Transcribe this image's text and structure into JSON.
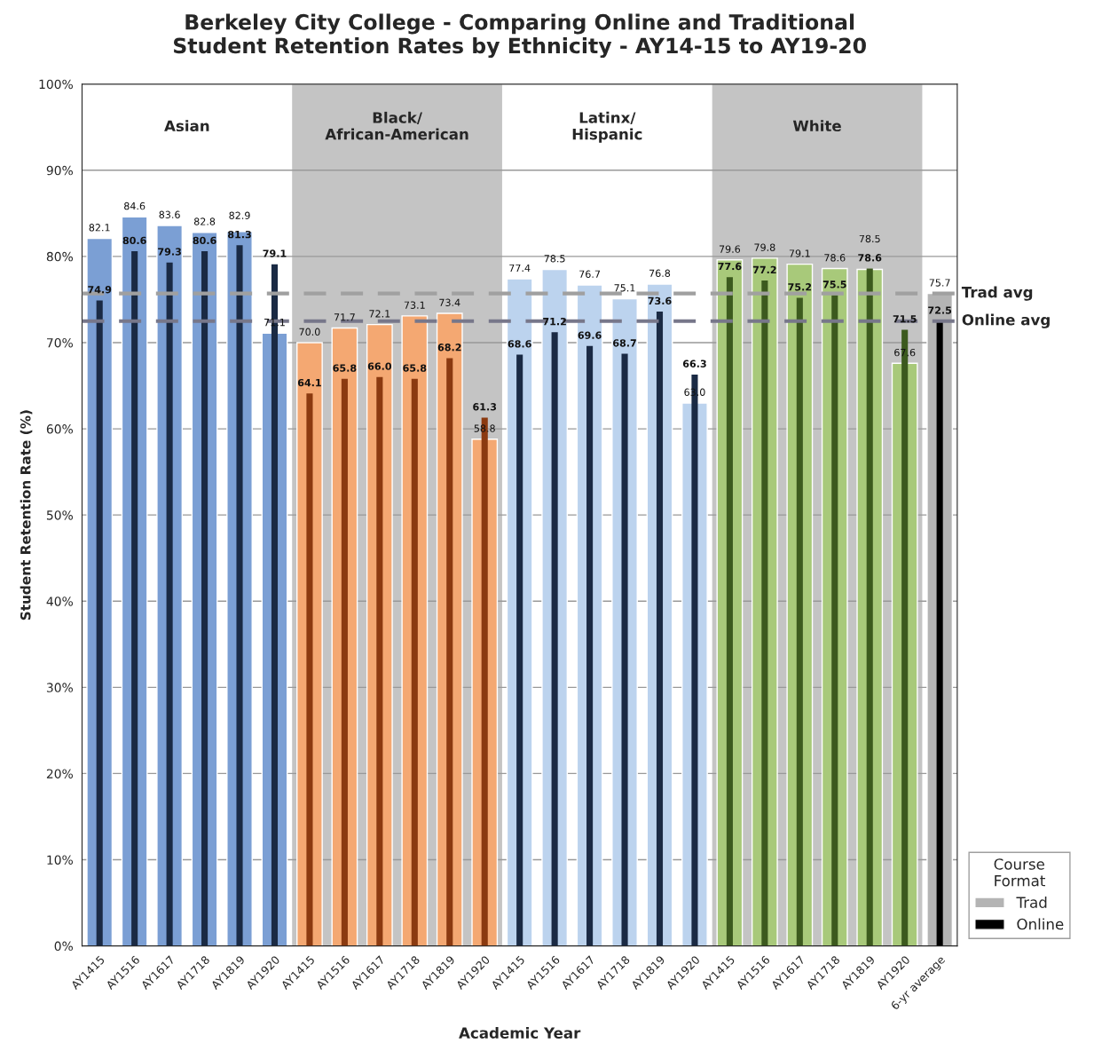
{
  "chart_data": {
    "type": "bar",
    "title": "Berkeley City College - Comparing Online and Traditional\nStudent Retention Rates by Ethnicity - AY14-15 to AY19-20",
    "xlabel": "Academic Year",
    "ylabel": "Student Retention Rate (%)",
    "legend_title": "Course\nFormat",
    "categories": [
      "AY1415",
      "AY1516",
      "AY1617",
      "AY1718",
      "AY1819",
      "AY1920",
      "AY1415",
      "AY1516",
      "AY1617",
      "AY1718",
      "AY1819",
      "AY1920",
      "AY1415",
      "AY1516",
      "AY1617",
      "AY1718",
      "AY1819",
      "AY1920",
      "AY1415",
      "AY1516",
      "AY1617",
      "AY1718",
      "AY1819",
      "AY1920",
      "6-yr average"
    ],
    "series": [
      {
        "name": "Trad",
        "colors": [
          "#7b9fd4",
          "#7b9fd4",
          "#7b9fd4",
          "#7b9fd4",
          "#7b9fd4",
          "#7b9fd4",
          "#f4a872",
          "#f4a872",
          "#f4a872",
          "#f4a872",
          "#f4a872",
          "#f4a872",
          "#bcd3ee",
          "#bcd3ee",
          "#bcd3ee",
          "#bcd3ee",
          "#bcd3ee",
          "#bcd3ee",
          "#a8c97a",
          "#a8c97a",
          "#a8c97a",
          "#a8c97a",
          "#a8c97a",
          "#a8c97a",
          "#b4b4b4"
        ],
        "values": [
          82.1,
          84.6,
          83.6,
          82.8,
          82.9,
          71.1,
          70.0,
          71.7,
          72.1,
          73.1,
          73.4,
          58.8,
          77.4,
          78.5,
          76.7,
          75.1,
          76.8,
          63.0,
          79.6,
          79.8,
          79.1,
          78.6,
          78.5,
          67.6,
          75.7
        ],
        "value_labels": [
          "82.1",
          "84.6",
          "83.6",
          "82.8",
          "82.9",
          "71.1",
          "70.0",
          "71.7",
          "72.1",
          "73.1",
          "73.4",
          "58.8",
          "77.4",
          "78.5",
          "76.7",
          "75.1",
          "76.8",
          "63.0",
          "79.6",
          "79.8",
          "79.1",
          "78.6",
          "78.5",
          "67.6",
          "75.7"
        ]
      },
      {
        "name": "Online",
        "colors": [
          "#1a2a44",
          "#1a2a44",
          "#1a2a44",
          "#1a2a44",
          "#1a2a44",
          "#1a2a44",
          "#8b3a10",
          "#8b3a10",
          "#8b3a10",
          "#8b3a10",
          "#8b3a10",
          "#8b3a10",
          "#1a2a44",
          "#1a2a44",
          "#1a2a44",
          "#1a2a44",
          "#1a2a44",
          "#1a2a44",
          "#3c5a1e",
          "#3c5a1e",
          "#3c5a1e",
          "#3c5a1e",
          "#3c5a1e",
          "#3c5a1e",
          "#000000"
        ],
        "values": [
          74.9,
          80.6,
          79.3,
          80.6,
          81.3,
          79.1,
          64.1,
          65.8,
          66.0,
          65.8,
          68.2,
          61.3,
          68.6,
          71.2,
          69.6,
          68.7,
          73.6,
          66.3,
          77.6,
          77.2,
          75.2,
          75.5,
          78.6,
          71.5,
          72.5
        ],
        "value_labels": [
          "74.9",
          "80.6",
          "79.3",
          "80.6",
          "81.3",
          "79.1",
          "64.1",
          "65.8",
          "66.0",
          "65.8",
          "68.2",
          "61.3",
          "68.6",
          "71.2",
          "69.6",
          "68.7",
          "73.6",
          "66.3",
          "77.6",
          "77.2",
          "75.2",
          "75.5",
          "78.6",
          "71.5",
          "72.5"
        ]
      }
    ],
    "ylim": [
      0,
      100
    ],
    "yticks": [
      {
        "value": 0,
        "label": "0%"
      },
      {
        "value": 10,
        "label": "10%"
      },
      {
        "value": 20,
        "label": "20%"
      },
      {
        "value": 30,
        "label": "30%"
      },
      {
        "value": 40,
        "label": "40%"
      },
      {
        "value": 50,
        "label": "50%"
      },
      {
        "value": 60,
        "label": "60%"
      },
      {
        "value": 70,
        "label": "70%"
      },
      {
        "value": 80,
        "label": "80%"
      },
      {
        "value": 90,
        "label": "90%"
      },
      {
        "value": 100,
        "label": "100%"
      }
    ],
    "ref_lines": [
      {
        "axis": "y",
        "value": 75.7,
        "label": "Trad avg",
        "color": "#a0a0a0",
        "line_style": "dashed"
      },
      {
        "axis": "y",
        "value": 72.5,
        "label": "Online avg",
        "color": "#77778a",
        "line_style": "dashed"
      }
    ],
    "annotations": [
      "Asian",
      "Black/\nAfrican-American",
      "Latinx/\nHispanic",
      "White"
    ],
    "grid": "y",
    "legend": "bottom right"
  }
}
